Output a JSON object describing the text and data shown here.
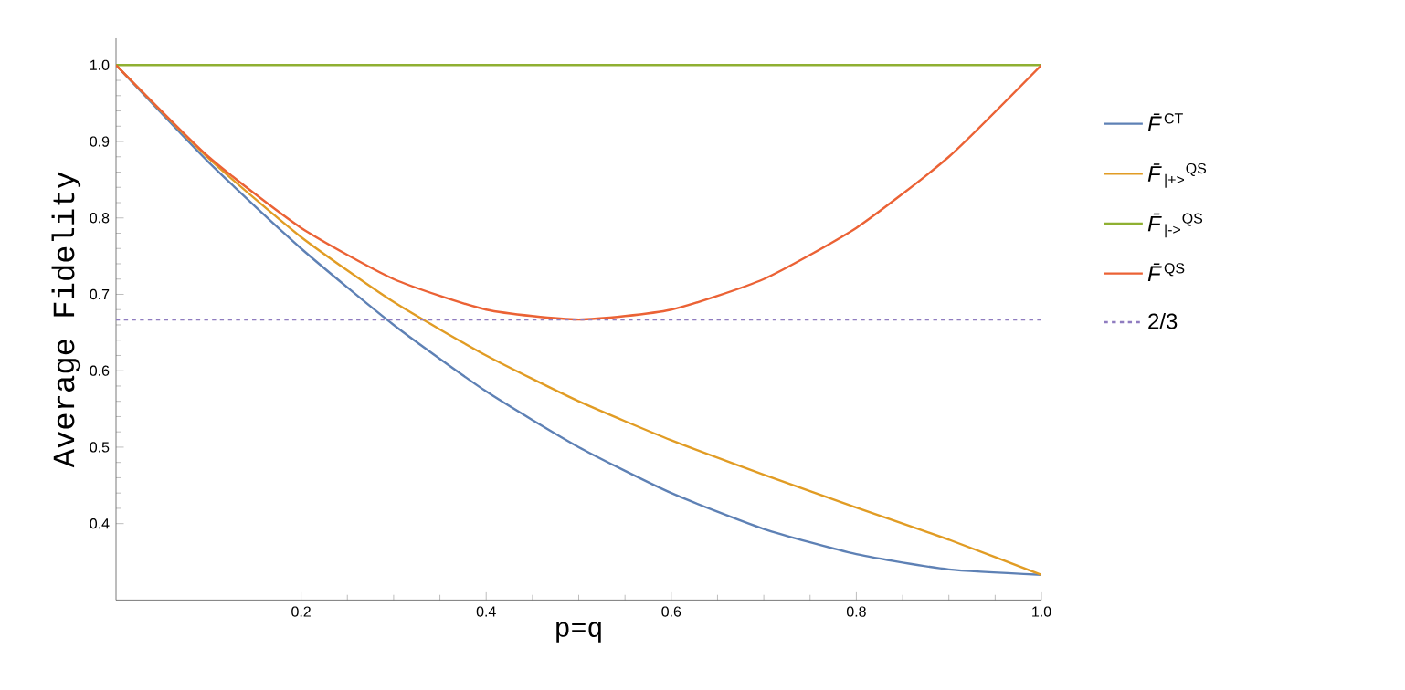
{
  "chart_data": {
    "type": "line",
    "xlabel": "p=q",
    "ylabel": "Average Fidelity",
    "x": [
      0,
      0.1,
      0.2,
      0.3,
      0.4,
      0.5,
      0.6,
      0.7,
      0.8,
      0.9,
      1.0
    ],
    "series": [
      {
        "name": "*F̄*$^{CT}$",
        "color": "#5e81b5",
        "values": [
          1,
          0.873,
          0.76,
          0.66,
          0.573,
          0.5,
          0.44,
          0.393,
          0.36,
          0.34,
          0.333
        ]
      },
      {
        "name": "*F̄*$_{|+>}$$^{QS}$",
        "color": "#e19c24",
        "values": [
          1,
          0.878,
          0.775,
          0.69,
          0.62,
          0.56,
          0.509,
          0.464,
          0.421,
          0.379,
          0.333
        ]
      },
      {
        "name": "*F̄*$_{|->}$$^{QS}$",
        "color": "#8fb032",
        "values": [
          1,
          1,
          1,
          1,
          1,
          1,
          1,
          1,
          1,
          1,
          1
        ]
      },
      {
        "name": "*F̄*$^{QS}$",
        "color": "#eb6235",
        "values": [
          1,
          0.88,
          0.787,
          0.72,
          0.68,
          0.667,
          0.68,
          0.72,
          0.787,
          0.88,
          1
        ]
      },
      {
        "name": "2/3",
        "color": "#8f7cc0",
        "line_style": "dashed",
        "values": [
          0.667,
          0.667,
          0.667,
          0.667,
          0.667,
          0.667,
          0.667,
          0.667,
          0.667,
          0.667,
          0.667
        ]
      }
    ],
    "xlim": [
      0,
      1.0
    ],
    "ylim": [
      0.3,
      1.035
    ],
    "xticks": [
      0.2,
      0.4,
      0.6,
      0.8,
      {
        "value": 1.0,
        "label": "1.0"
      }
    ],
    "yticks": [
      0.4,
      0.5,
      0.6,
      0.7,
      0.8,
      0.9,
      {
        "value": 1.0,
        "label": "1.0"
      }
    ],
    "grid": false,
    "legend": "right",
    "marker": "none",
    "line_style": "solid"
  }
}
